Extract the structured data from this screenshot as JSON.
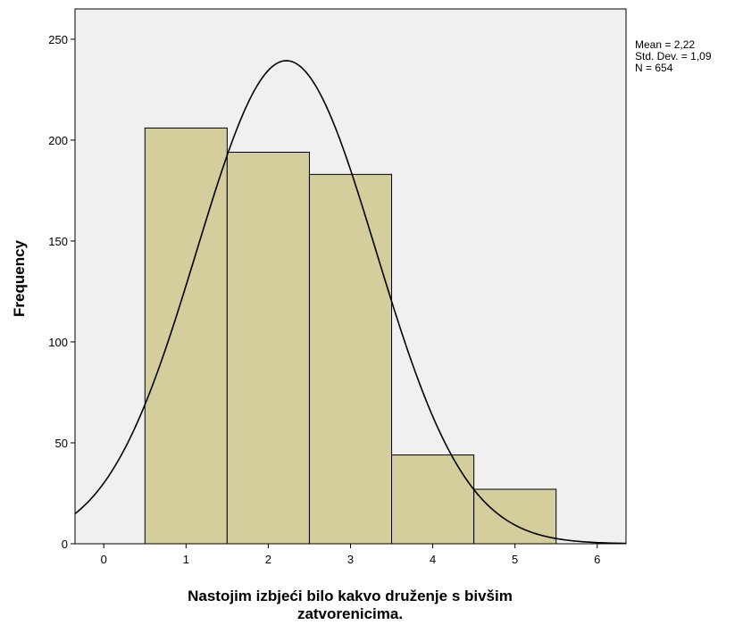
{
  "chart_data": {
    "type": "bar",
    "subtype": "histogram",
    "title": "",
    "xlabel_lines": [
      "Nastojim izbjeći bilo kakvo druženje s bivšim",
      "zatvorenicima."
    ],
    "ylabel": "Frequency",
    "xlim": [
      -0.35,
      6.35
    ],
    "ylim": [
      0,
      265
    ],
    "xticks": [
      0,
      1,
      2,
      3,
      4,
      5,
      6
    ],
    "yticks": [
      0,
      50,
      100,
      150,
      200,
      250
    ],
    "bins": [
      {
        "x": 1,
        "value": 206
      },
      {
        "x": 2,
        "value": 194
      },
      {
        "x": 3,
        "value": 183
      },
      {
        "x": 4,
        "value": 44
      },
      {
        "x": 5,
        "value": 27
      }
    ],
    "bin_width": 1,
    "normal_curve": {
      "mean": 2.22,
      "std": 1.09,
      "n": 654
    },
    "stats_lines": [
      "Mean = 2,22",
      "Std. Dev. = 1,09",
      "N = 654"
    ],
    "colors": {
      "plot_background": "#f0f0f0",
      "bar_fill": "#d3ce9b",
      "bar_stroke": "#000000",
      "curve": "#000000"
    }
  }
}
